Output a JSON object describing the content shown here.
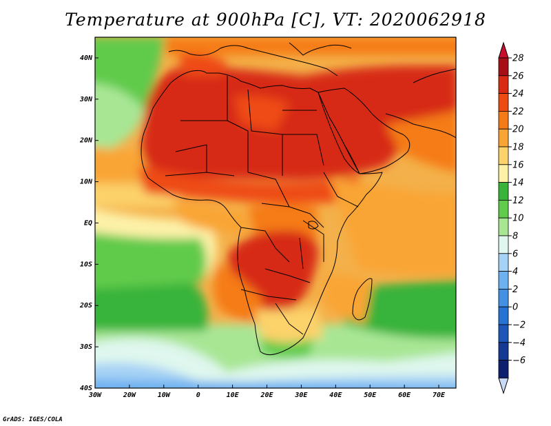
{
  "title": "Temperature at 900hPa [C], VT: 2020062918",
  "credit": "GrADS: IGES/COLA",
  "map": {
    "lon_range": [
      -30,
      75
    ],
    "lat_range": [
      -40,
      45
    ],
    "lon_ticks": [
      "30W",
      "20W",
      "10W",
      "0",
      "10E",
      "20E",
      "30E",
      "40E",
      "50E",
      "60E",
      "70E"
    ],
    "lon_tick_values": [
      -30,
      -20,
      -10,
      0,
      10,
      20,
      30,
      40,
      50,
      60,
      70
    ],
    "lat_ticks": [
      "40S",
      "30S",
      "20S",
      "10S",
      "EQ",
      "10N",
      "20N",
      "30N",
      "40N"
    ],
    "lat_tick_values": [
      -40,
      -30,
      -20,
      -10,
      0,
      10,
      20,
      30,
      40
    ]
  },
  "colorbar": {
    "labels": [
      "28",
      "26",
      "24",
      "22",
      "20",
      "18",
      "16",
      "14",
      "12",
      "10",
      "8",
      "6",
      "4",
      "2",
      "0",
      "−2",
      "−4",
      "−6"
    ],
    "colors": [
      "#a50f15",
      "#d72b14",
      "#ee4b12",
      "#f57b18",
      "#f9a535",
      "#fcd26a",
      "#fdf1a8",
      "#39b33a",
      "#61cb4b",
      "#a8e694",
      "#dff7ee",
      "#a6d2f5",
      "#6eb1f0",
      "#4491e3",
      "#2673d4",
      "#1d55b8",
      "#153a94",
      "#0d2070"
    ],
    "over_color": "#c8102e",
    "under_color": "#c9d8f7"
  }
}
